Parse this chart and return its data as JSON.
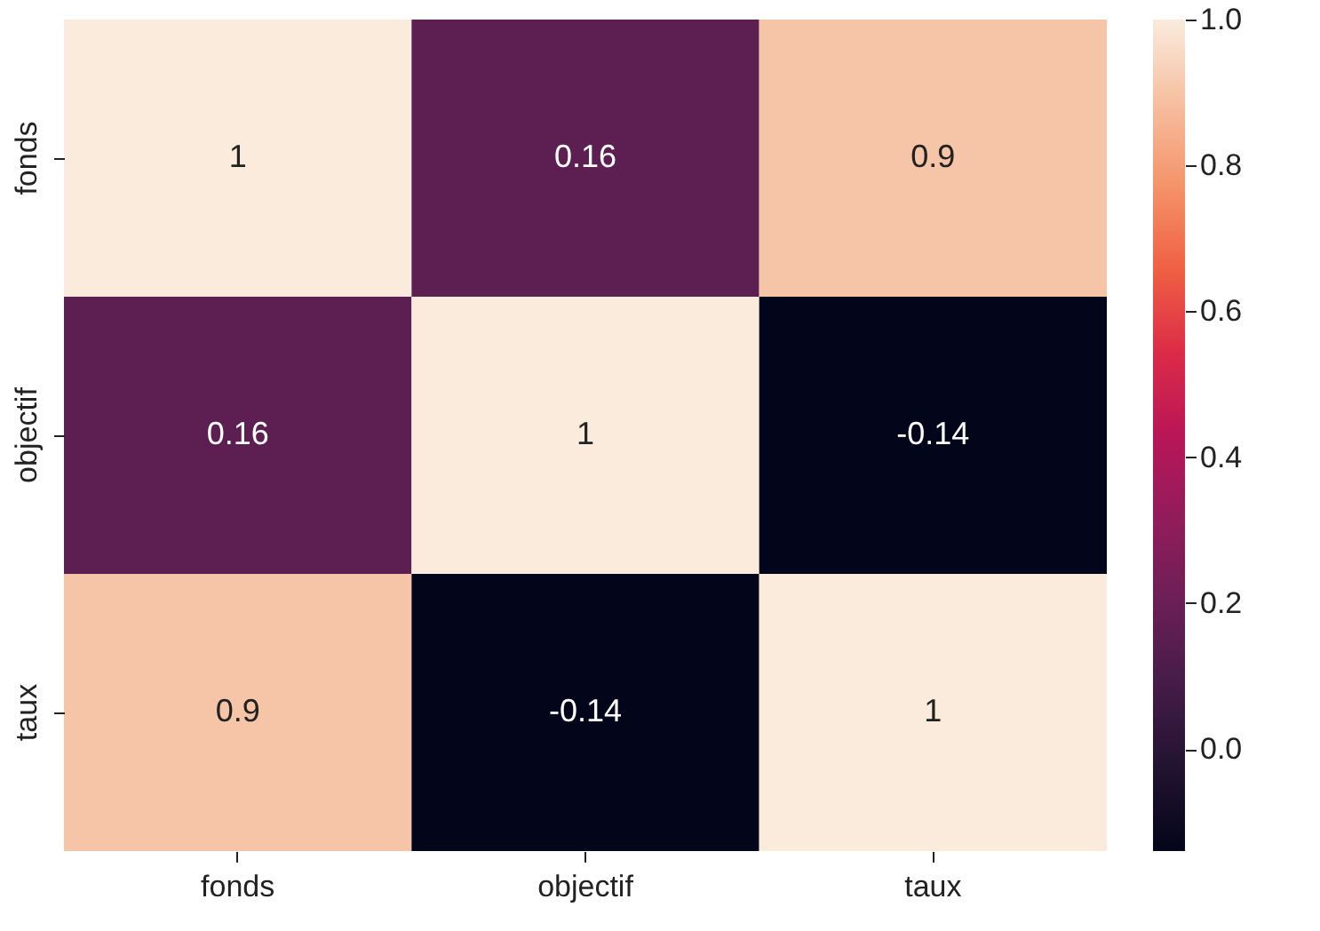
{
  "chart_data": {
    "type": "heatmap",
    "categories": [
      "fonds",
      "objectif",
      "taux"
    ],
    "y_categories": [
      "fonds",
      "objectif",
      "taux"
    ],
    "cells": [
      [
        1,
        0.16,
        0.9
      ],
      [
        0.16,
        1,
        -0.14
      ],
      [
        0.9,
        -0.14,
        1
      ]
    ],
    "data_labels": true,
    "clim": [
      -0.14,
      1.0
    ],
    "cticks": [
      {
        "value": 0,
        "label": "0.0"
      },
      {
        "value": 0.2,
        "label": "0.2"
      },
      {
        "value": 0.4,
        "label": "0.4"
      },
      {
        "value": 0.6,
        "label": "0.6"
      },
      {
        "value": 0.8,
        "label": "0.8"
      },
      {
        "value": 1,
        "label": "1.0"
      }
    ]
  }
}
